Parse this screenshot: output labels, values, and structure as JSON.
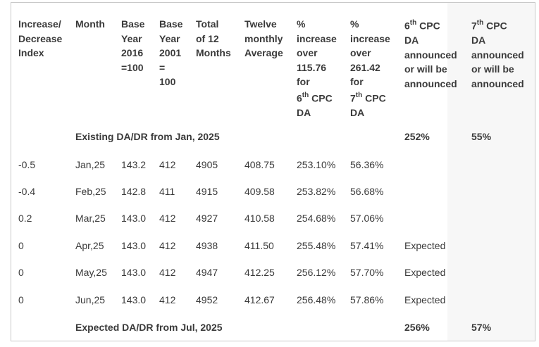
{
  "headers": {
    "index": [
      "Increase/",
      "Decrease",
      "Index"
    ],
    "month": [
      "Month"
    ],
    "base2016": [
      "Base",
      "Year",
      "2016",
      "=100"
    ],
    "base2001": [
      "Base",
      "Year",
      "2001",
      "=",
      "100"
    ],
    "total": [
      "Total",
      "of 12",
      "Months"
    ],
    "avg": [
      "Twelve",
      "monthly",
      "Average"
    ],
    "pct6": [
      "%",
      "increase",
      "over",
      "115.76",
      "for",
      "6",
      "th",
      "CPC",
      "DA"
    ],
    "pct7": [
      "%",
      "increase",
      "over",
      "261.42",
      "for",
      "7",
      "th",
      "CPC",
      "DA"
    ],
    "da6": [
      "6",
      "th",
      "CPC",
      "DA",
      "announced",
      "or will be",
      "announced"
    ],
    "da7": [
      "7",
      "th",
      "CPC",
      "DA",
      "announced",
      "or will be",
      "announced"
    ]
  },
  "existing_row": {
    "label": "Existing DA/DR from Jan, 2025",
    "da6": "252%",
    "da7": "55%"
  },
  "rows": [
    {
      "index": "-0.5",
      "month": "Jan,25",
      "base2016": "143.2",
      "base2001": "412",
      "total": "4905",
      "avg": "408.75",
      "pct6": "253.10%",
      "pct7": "56.36%",
      "da6": ""
    },
    {
      "index": "-0.4",
      "month": "Feb,25",
      "base2016": "142.8",
      "base2001": "411",
      "total": "4915",
      "avg": "409.58",
      "pct6": "253.82%",
      "pct7": "56.68%",
      "da6": ""
    },
    {
      "index": "0.2",
      "month": "Mar,25",
      "base2016": "143.0",
      "base2001": "412",
      "total": "4927",
      "avg": "410.58",
      "pct6": "254.68%",
      "pct7": "57.06%",
      "da6": ""
    },
    {
      "index": "0",
      "month": "Apr,25",
      "base2016": "143.0",
      "base2001": "412",
      "total": "4938",
      "avg": "411.50",
      "pct6": "255.48%",
      "pct7": "57.41%",
      "da6": "Expected"
    },
    {
      "index": "0",
      "month": "May,25",
      "base2016": "143.0",
      "base2001": "412",
      "total": "4947",
      "avg": "412.25",
      "pct6": "256.12%",
      "pct7": "57.70%",
      "da6": "Expected"
    },
    {
      "index": "0",
      "month": "Jun,25",
      "base2016": "143.0",
      "base2001": "412",
      "total": "4952",
      "avg": "412.67",
      "pct6": "256.48%",
      "pct7": "57.86%",
      "da6": "Expected"
    }
  ],
  "expected_row": {
    "label": "Expected DA/DR from Jul, 2025",
    "da6": "256%",
    "da7": "57%"
  }
}
